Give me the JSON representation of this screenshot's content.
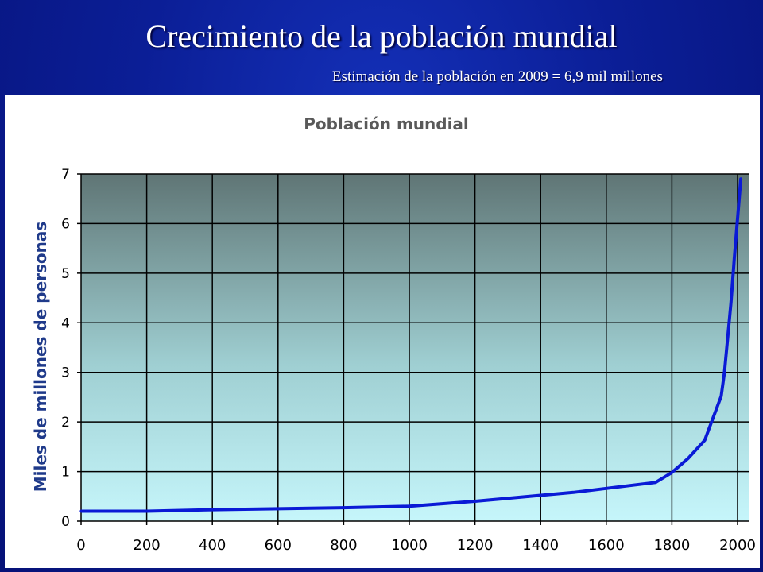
{
  "slide": {
    "title": "Crecimiento de la población mundial",
    "subtitle": "Estimación de la población en 2009 = 6,9 mil millones"
  },
  "colors": {
    "background": "#0b1e96",
    "plot_top": "#5f7575",
    "plot_bottom": "#c6f6fb",
    "series": "#0a1ad6",
    "grid": "#000000"
  },
  "chart_data": {
    "type": "line",
    "title": "Población mundial",
    "xlabel": "",
    "ylabel": "Miles de millones de personas",
    "xlim": [
      0,
      2000
    ],
    "ylim": [
      0,
      7
    ],
    "x_ticks": [
      "0",
      "200",
      "400",
      "600",
      "800",
      "1000",
      "1200",
      "1400",
      "1600",
      "1800",
      "2000"
    ],
    "y_ticks": [
      "0",
      "1",
      "2",
      "3",
      "4",
      "5",
      "6",
      "7"
    ],
    "grid": true,
    "legend": "none",
    "series": [
      {
        "x": [
          1,
          200,
          400,
          600,
          800,
          1000,
          1100,
          1200,
          1300,
          1400,
          1500,
          1600,
          1700,
          1750,
          1800,
          1850,
          1900,
          1950,
          1960,
          1970,
          1980,
          1990,
          2000,
          2010
        ],
        "y": [
          0.2,
          0.2,
          0.23,
          0.25,
          0.27,
          0.3,
          0.35,
          0.4,
          0.46,
          0.52,
          0.58,
          0.66,
          0.74,
          0.78,
          0.98,
          1.27,
          1.63,
          2.52,
          3.0,
          3.7,
          4.4,
          5.3,
          6.1,
          6.9
        ]
      }
    ]
  }
}
